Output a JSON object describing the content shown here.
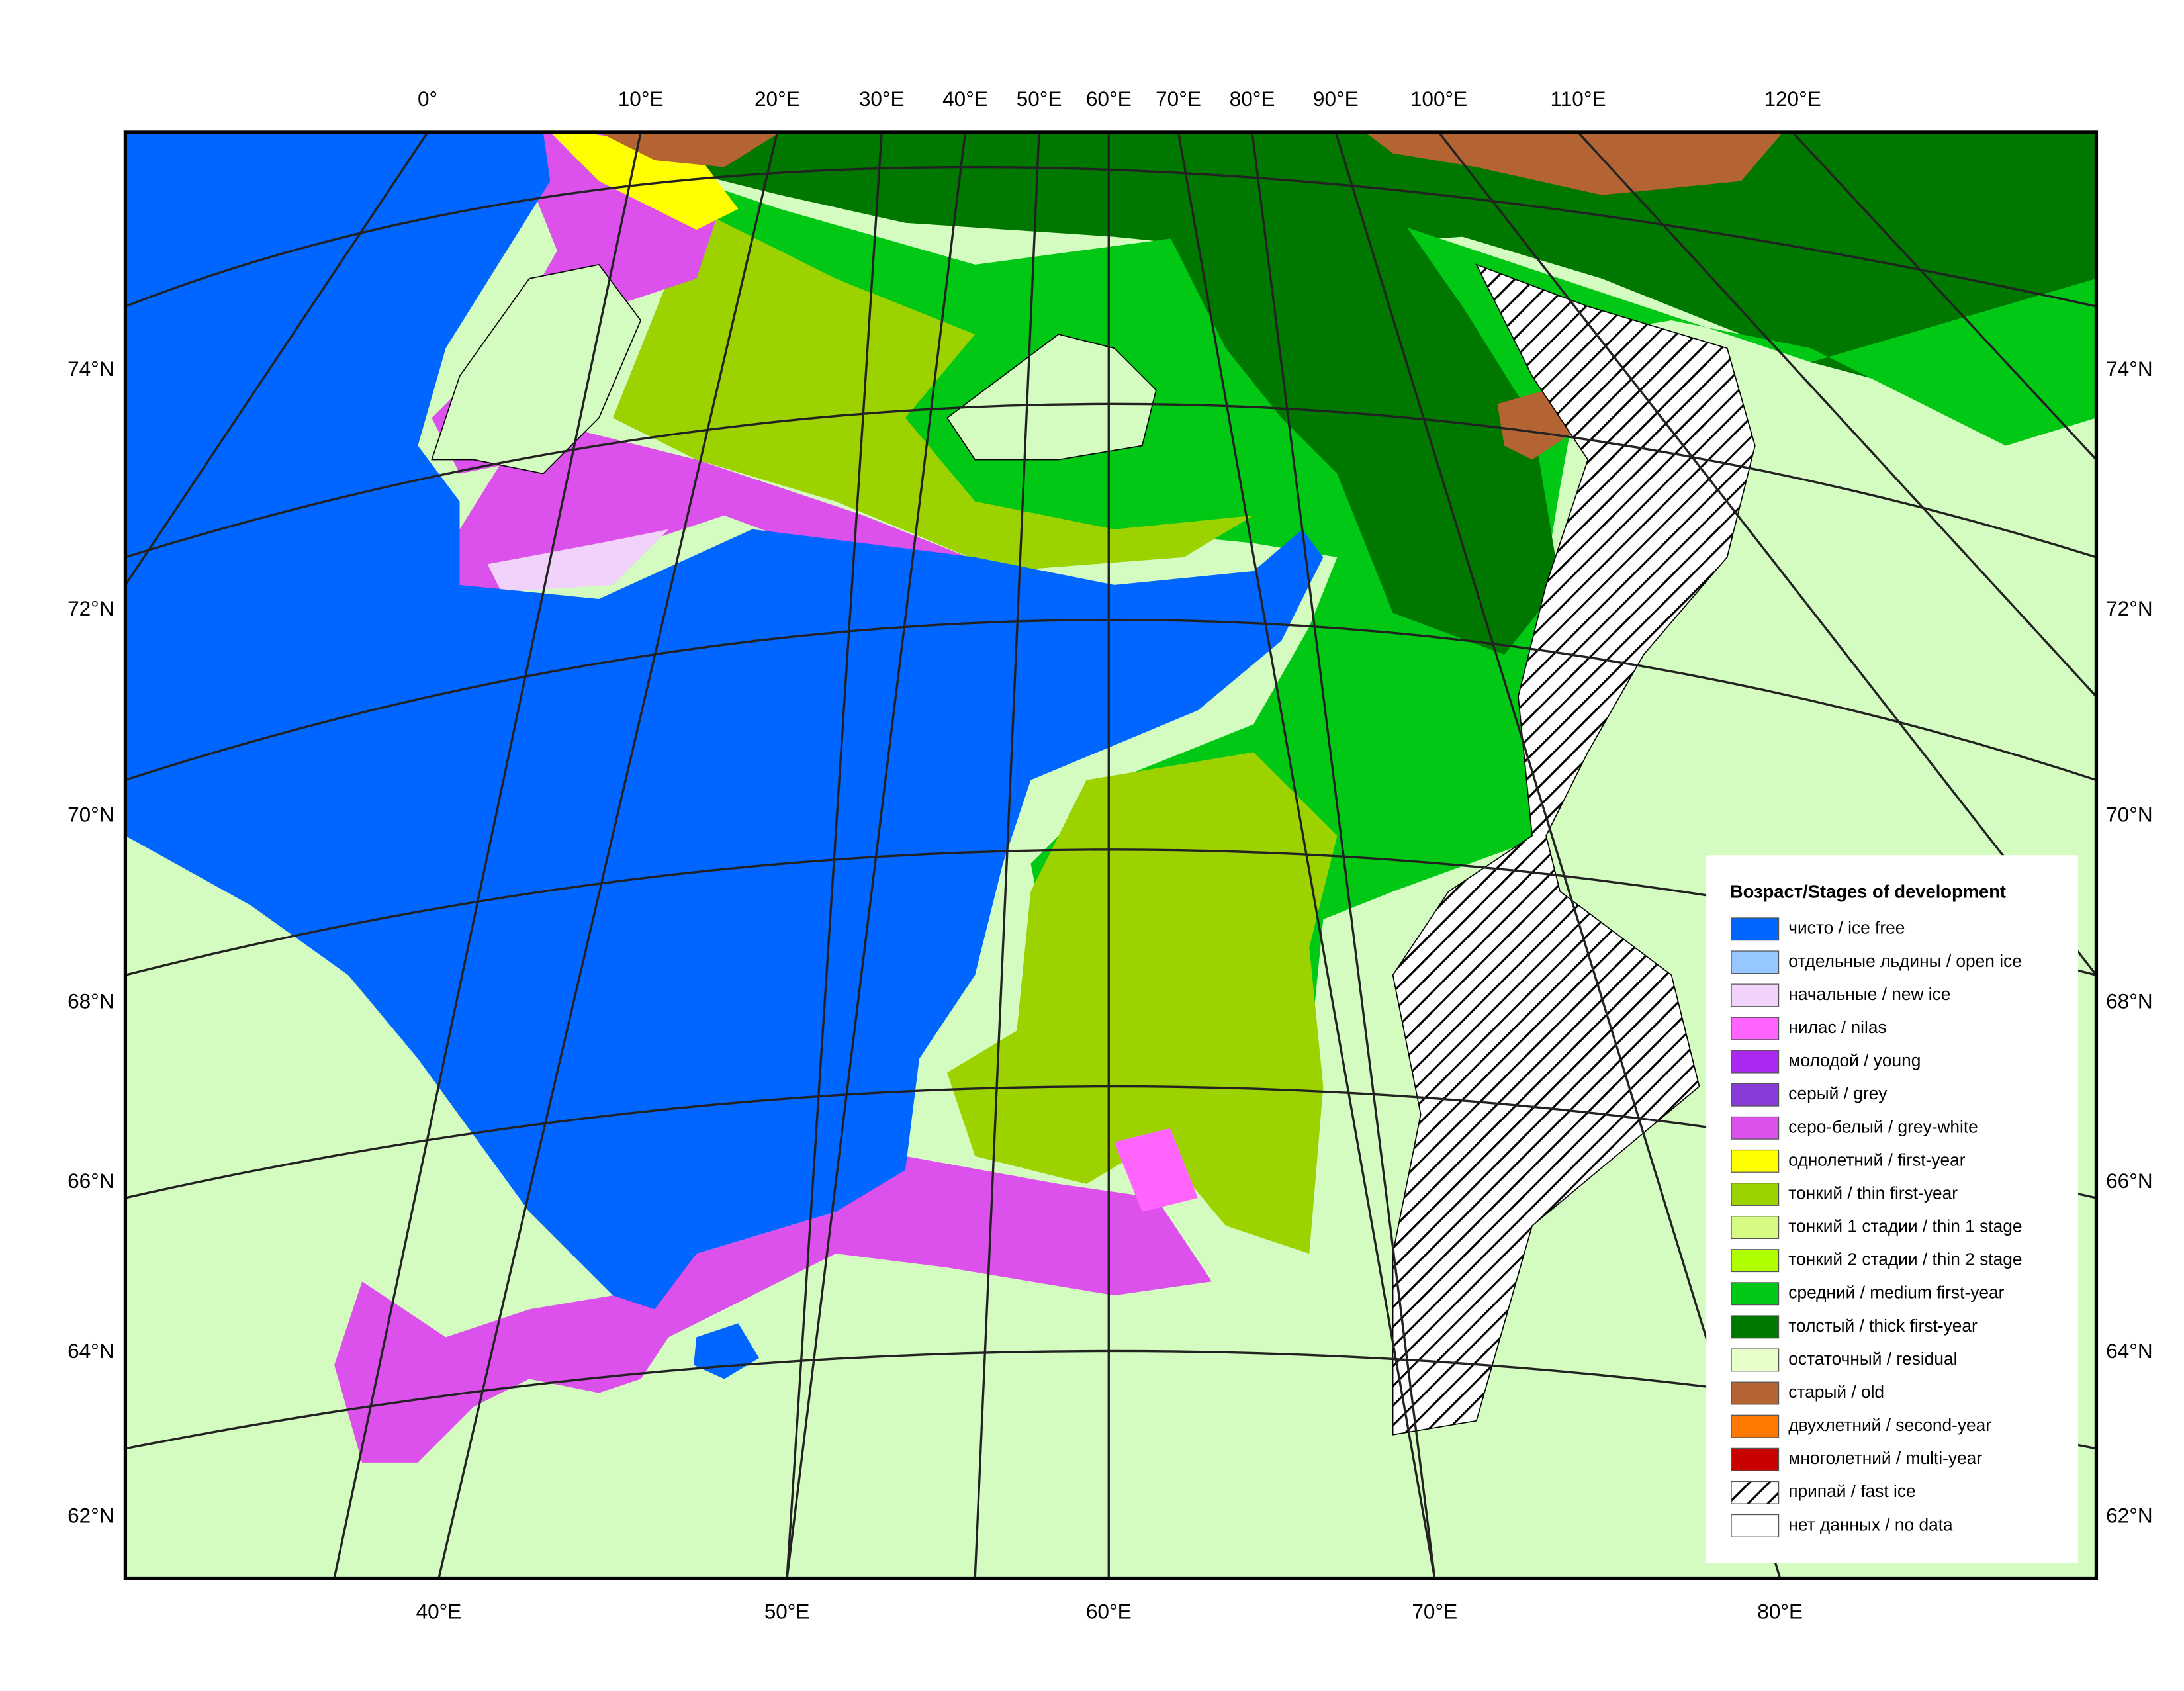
{
  "map": {
    "top_labels": [
      "0°",
      "10°E",
      "20°E",
      "30°E",
      "40°E",
      "50°E",
      "60°E",
      "70°E",
      "80°E",
      "90°E",
      "100°E",
      "110°E",
      "120°E"
    ],
    "bottom_labels": [
      "40°E",
      "50°E",
      "60°E",
      "70°E",
      "80°E"
    ],
    "lat_labels": [
      "74°N",
      "72°N",
      "70°N",
      "68°N",
      "66°N",
      "64°N",
      "62°N"
    ],
    "legend": {
      "title": "Возраст/Stages of development",
      "items": [
        {
          "label": "чисто / ice free",
          "color": "#0066ff"
        },
        {
          "label": "отдельные льдины / open ice",
          "color": "#96c8ff"
        },
        {
          "label": "начальные / new ice",
          "color": "#f0d2fa"
        },
        {
          "label": "нилас / nilas",
          "color": "#ff64ff"
        },
        {
          "label": "молодой / young",
          "color": "#aa28f0"
        },
        {
          "label": "серый / grey",
          "color": "#873cd7"
        },
        {
          "label": "серо-белый / grey-white",
          "color": "#dc50eb"
        },
        {
          "label": "однолетний / first-year",
          "color": "#ffff00"
        },
        {
          "label": "тонкий / thin first-year",
          "color": "#9bd200"
        },
        {
          "label": "тонкий 1 стадии / thin 1 stage",
          "color": "#d7fa82"
        },
        {
          "label": "тонкий 2 стадии / thin 2 stage",
          "color": "#afff00"
        },
        {
          "label": "средний / medium first-year",
          "color": "#00c814"
        },
        {
          "label": "толстый / thick first-year",
          "color": "#007800"
        },
        {
          "label": "остаточный / residual",
          "color": "#e6ffc8"
        },
        {
          "label": "старый / old",
          "color": "#b46432"
        },
        {
          "label": "двухлетний / second-year",
          "color": "#ff7800"
        },
        {
          "label": "многолетний / multi-year",
          "color": "#c80000"
        },
        {
          "label": "припай / fast ice",
          "color": "#ffffff",
          "pattern": "hatch"
        },
        {
          "label": "нет данных / no data",
          "color": "#ffffff"
        }
      ]
    }
  }
}
